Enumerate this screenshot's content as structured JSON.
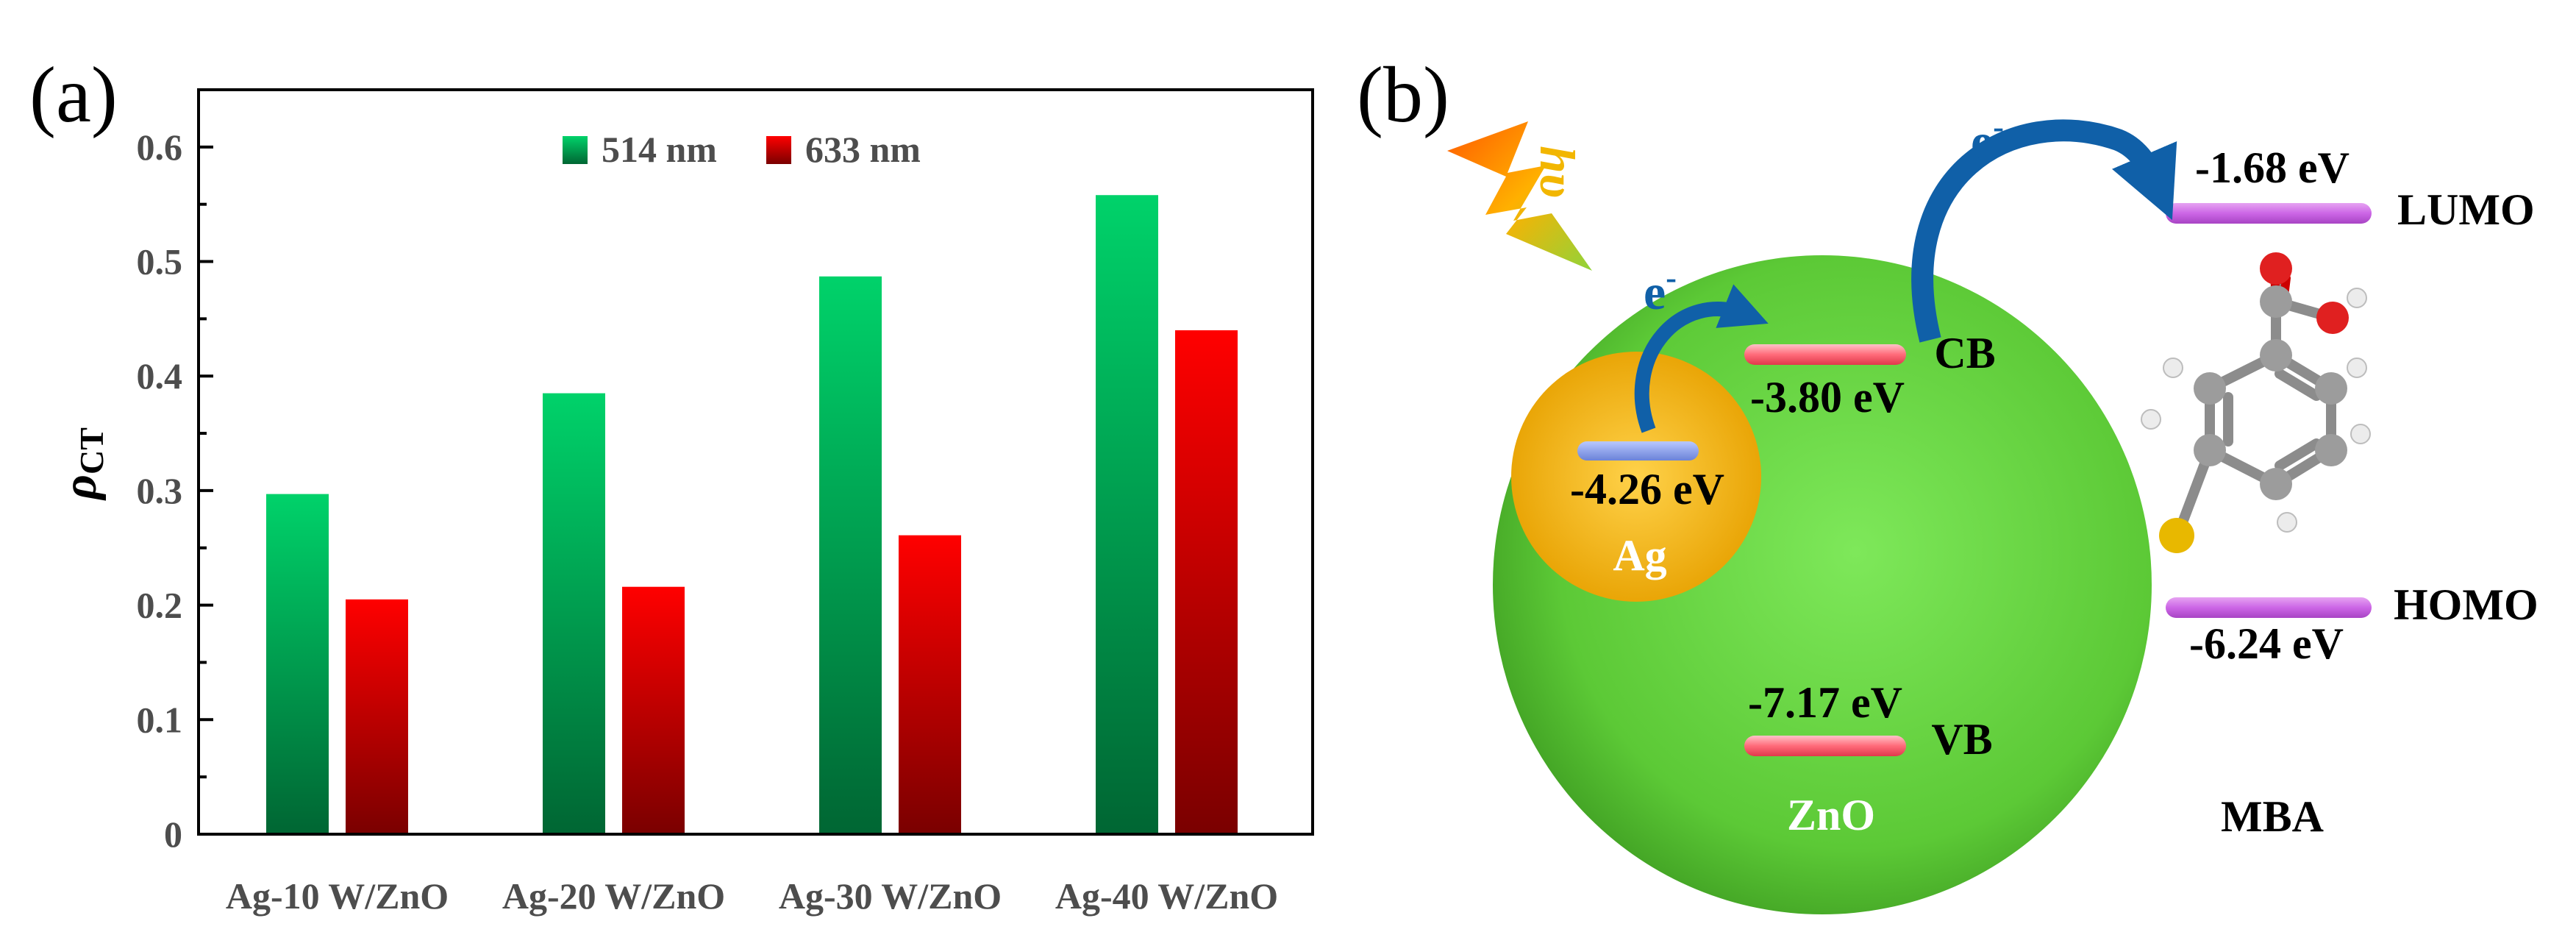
{
  "panel_a": {
    "label": "(a)"
  },
  "panel_b": {
    "label": "(b)"
  },
  "chart_data": {
    "type": "bar",
    "title": "",
    "xlabel": "",
    "ylabel": "ρCT",
    "ylabel_main": "ρ",
    "ylabel_sub": "CT",
    "ylim": [
      0,
      0.65
    ],
    "yticks": [
      "0",
      "0.1",
      "0.2",
      "0.3",
      "0.4",
      "0.5",
      "0.6"
    ],
    "categories": [
      "Ag-10 W/ZnO",
      "Ag-20 W/ZnO",
      "Ag-30 W/ZnO",
      "Ag-40 W/ZnO"
    ],
    "legend_position": "top-center",
    "series": [
      {
        "name": "514 nm",
        "values": [
          0.297,
          0.385,
          0.487,
          0.558
        ],
        "color_top": "#00d26a",
        "color_bottom": "#006633"
      },
      {
        "name": "633 nm",
        "values": [
          0.205,
          0.216,
          0.261,
          0.44
        ],
        "color_top": "#ff0000",
        "color_bottom": "#7a0000"
      }
    ]
  },
  "diagram": {
    "light_symbol": "hυ",
    "electron": "e",
    "electron_sup": "-",
    "lumo": {
      "energy": "-1.68 eV",
      "label": "LUMO",
      "color": "#cc66e6"
    },
    "homo": {
      "energy": "-6.24 eV",
      "label": "HOMO",
      "color": "#cc33dd"
    },
    "cb": {
      "energy": "-3.80 eV",
      "label": "CB",
      "color": "#ff6b7a"
    },
    "vb": {
      "energy": "-7.17 eV",
      "label": "VB",
      "color": "#ff6b7a"
    },
    "ag": {
      "energy": "-4.26 eV",
      "label": "Ag",
      "color": "#f5b800"
    },
    "zno": {
      "label": "ZnO",
      "color": "#5fcf3a"
    },
    "mba": {
      "label": "MBA"
    },
    "arrow_color": "#1060a8"
  }
}
